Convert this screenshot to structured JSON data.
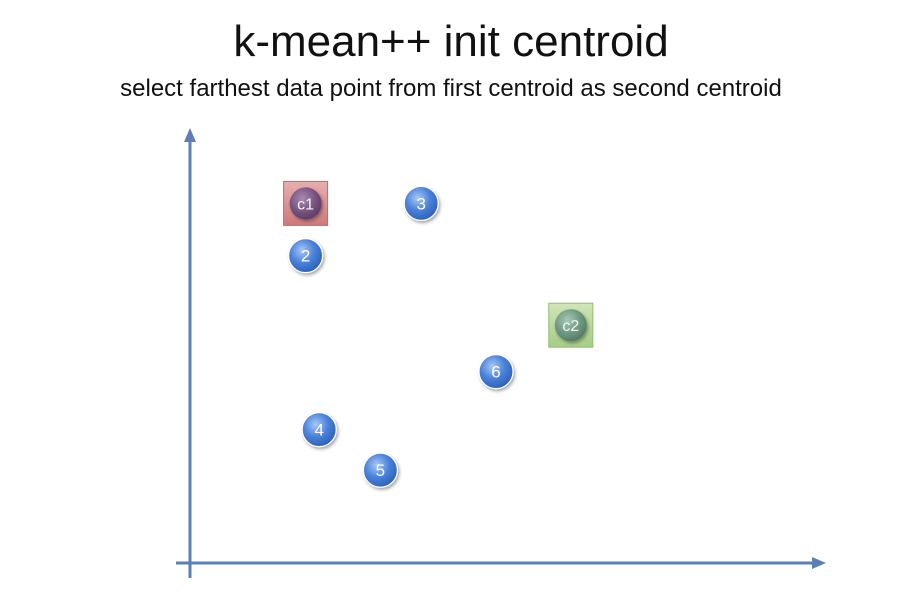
{
  "title": "k-mean++ init centroid",
  "subtitle": "select farthest data point from first centroid as second centroid",
  "colors": {
    "axis": "#5b7fb6",
    "point_fill": "#3f78d6",
    "point_highlight": "#9cc0f2",
    "c1_box": "#d98a8a",
    "c1_circle": "#7f5a86",
    "c2_box": "#b7d89a",
    "c2_circle": "#6f9a80"
  },
  "points": [
    {
      "label": "3",
      "x": 3.4,
      "y": 6.2
    },
    {
      "label": "2",
      "x": 1.7,
      "y": 5.3
    },
    {
      "label": "6",
      "x": 4.5,
      "y": 3.3
    },
    {
      "label": "4",
      "x": 1.9,
      "y": 2.3
    },
    {
      "label": "5",
      "x": 2.8,
      "y": 1.6
    }
  ],
  "centroids": [
    {
      "label": "c1",
      "x": 1.7,
      "y": 6.2,
      "style": "c1"
    },
    {
      "label": "c2",
      "x": 5.6,
      "y": 4.1,
      "style": "c2"
    }
  ]
}
